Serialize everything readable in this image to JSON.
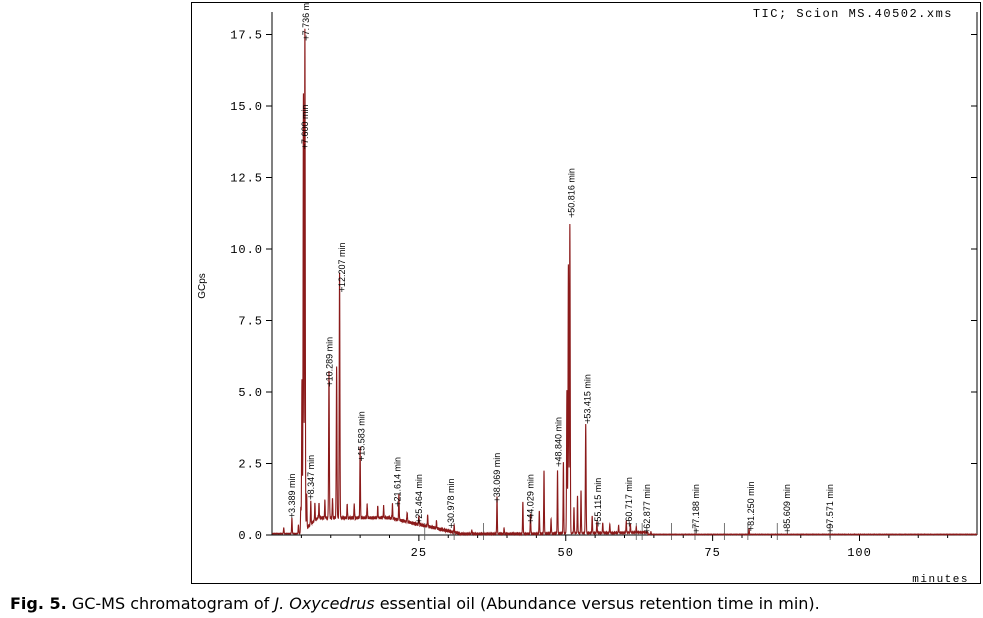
{
  "chart_data": {
    "type": "line",
    "title": "TIC; Scion MS.40502.xms",
    "ylabel": "GCps",
    "xlabel": "minutes",
    "xlim": [
      0,
      120
    ],
    "ylim": [
      0,
      18
    ],
    "x_ticks": [
      25,
      50,
      75,
      100
    ],
    "y_ticks": [
      0.0,
      2.5,
      5.0,
      7.5,
      10.0,
      12.5,
      15.0,
      17.5
    ],
    "y_tick_labels": [
      "0.0",
      "2.5",
      "5.0",
      "7.5",
      "10.0",
      "12.5",
      "15.0",
      "17.5"
    ],
    "x_tick_labels": [
      "25",
      "50",
      "75",
      "100"
    ],
    "grid": false,
    "series": [
      {
        "color": "#8b1a1a",
        "peaks": [
          {
            "t": 2.0,
            "h": 0.2
          },
          {
            "t": 3.389,
            "h": 0.55
          },
          {
            "t": 4.5,
            "h": 0.3
          },
          {
            "t": 4.9,
            "h": 0.9
          },
          {
            "t": 5.1,
            "h": 5.3
          },
          {
            "t": 5.35,
            "h": 15.3
          },
          {
            "t": 5.6,
            "h": 17.5
          },
          {
            "t": 5.9,
            "h": 1.2
          },
          {
            "t": 6.6,
            "h": 0.8
          },
          {
            "t": 7.3,
            "h": 0.6
          },
          {
            "t": 8.0,
            "h": 0.5
          },
          {
            "t": 9.0,
            "h": 0.6
          },
          {
            "t": 9.7,
            "h": 5.1
          },
          {
            "t": 10.3,
            "h": 0.7
          },
          {
            "t": 11.0,
            "h": 5.3
          },
          {
            "t": 11.5,
            "h": 8.6
          },
          {
            "t": 12.8,
            "h": 0.5
          },
          {
            "t": 14.0,
            "h": 0.5
          },
          {
            "t": 15.0,
            "h": 2.5
          },
          {
            "t": 16.2,
            "h": 0.5
          },
          {
            "t": 18.0,
            "h": 0.4
          },
          {
            "t": 19.0,
            "h": 0.4
          },
          {
            "t": 20.5,
            "h": 0.5
          },
          {
            "t": 21.6,
            "h": 0.9
          },
          {
            "t": 23.0,
            "h": 0.35
          },
          {
            "t": 25.0,
            "h": 0.3
          },
          {
            "t": 26.5,
            "h": 0.4
          },
          {
            "t": 28.0,
            "h": 0.25
          },
          {
            "t": 31.0,
            "h": 0.25
          },
          {
            "t": 34.0,
            "h": 0.15
          },
          {
            "t": 38.3,
            "h": 1.3
          },
          {
            "t": 39.5,
            "h": 0.2
          },
          {
            "t": 42.7,
            "h": 1.1
          },
          {
            "t": 44.0,
            "h": 0.7
          },
          {
            "t": 45.5,
            "h": 0.8
          },
          {
            "t": 46.3,
            "h": 2.2
          },
          {
            "t": 47.5,
            "h": 0.5
          },
          {
            "t": 48.6,
            "h": 2.2
          },
          {
            "t": 49.6,
            "h": 2.5
          },
          {
            "t": 50.2,
            "h": 5.0
          },
          {
            "t": 50.45,
            "h": 9.4
          },
          {
            "t": 50.7,
            "h": 10.8
          },
          {
            "t": 51.4,
            "h": 0.9
          },
          {
            "t": 52.0,
            "h": 1.3
          },
          {
            "t": 52.6,
            "h": 1.5
          },
          {
            "t": 53.4,
            "h": 3.8
          },
          {
            "t": 54.5,
            "h": 0.6
          },
          {
            "t": 55.3,
            "h": 0.4
          },
          {
            "t": 56.3,
            "h": 0.35
          },
          {
            "t": 57.5,
            "h": 0.3
          },
          {
            "t": 59.0,
            "h": 0.25
          },
          {
            "t": 60.3,
            "h": 0.4
          },
          {
            "t": 61.0,
            "h": 0.3
          },
          {
            "t": 62.0,
            "h": 0.2
          },
          {
            "t": 64.5,
            "h": 0.1
          },
          {
            "t": 81.2,
            "h": 0.2
          }
        ]
      }
    ],
    "annotations": [
      {
        "label": "3.389 min",
        "t": 3.389,
        "y": 0.7
      },
      {
        "label": "7.736 min",
        "t": 5.8,
        "y": 17.4
      },
      {
        "label": "7.600 min",
        "t": 5.6,
        "y": 13.6
      },
      {
        "label": "8.347 min",
        "t": 6.6,
        "y": 1.35
      },
      {
        "label": "10.289 min",
        "t": 9.8,
        "y": 5.3
      },
      {
        "label": "12.207 min",
        "t": 11.9,
        "y": 8.6
      },
      {
        "label": "15.583 min",
        "t": 15.2,
        "y": 2.7
      },
      {
        "label": "21.614 min",
        "t": 21.4,
        "y": 1.1
      },
      {
        "label": "25.464 min",
        "t": 25.0,
        "y": 0.5
      },
      {
        "label": "30.978 min",
        "t": 30.5,
        "y": 0.35
      },
      {
        "label": "38.069 min",
        "t": 38.3,
        "y": 1.25
      },
      {
        "label": "44.029 min",
        "t": 44.0,
        "y": 0.5
      },
      {
        "label": "48.840 min",
        "t": 48.8,
        "y": 2.5
      },
      {
        "label": "50.816 min",
        "t": 51.0,
        "y": 11.2
      },
      {
        "label": "53.415 min",
        "t": 53.7,
        "y": 4.0
      },
      {
        "label": "55.115 min",
        "t": 55.5,
        "y": 0.4
      },
      {
        "label": "60.717 min",
        "t": 60.8,
        "y": 0.4
      },
      {
        "label": "62.877 min",
        "t": 63.8,
        "y": 0.15
      },
      {
        "label": "77.188 min",
        "t": 72.2,
        "y": 0.15
      },
      {
        "label": "81.250 min",
        "t": 81.5,
        "y": 0.25
      },
      {
        "label": "85.609 min",
        "t": 87.7,
        "y": 0.15
      },
      {
        "label": "97.571 min",
        "t": 95.0,
        "y": 0.15
      }
    ],
    "baseline_markers": [
      26,
      31,
      36,
      62,
      63,
      68,
      72,
      77,
      81,
      86,
      95
    ]
  },
  "caption": {
    "prefix": "Fig. 5.",
    "before_species": " GC-MS chromatogram of ",
    "species": "J. Oxycedrus",
    "after_species": " essential oil (Abundance versus retention time in min)."
  }
}
